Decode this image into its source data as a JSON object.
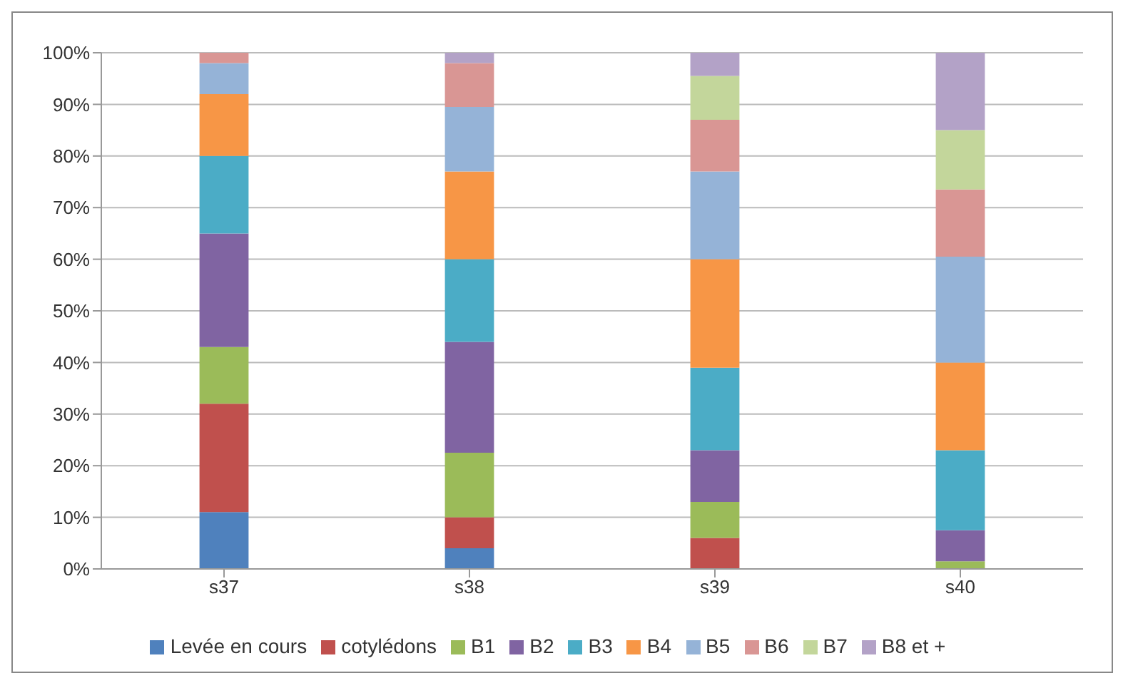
{
  "chart_data": {
    "type": "bar",
    "stacked": true,
    "categories": [
      "s37",
      "s38",
      "s39",
      "s40"
    ],
    "series": [
      {
        "name": "Levée en cours",
        "color": "#4f81bd",
        "values": [
          11,
          4,
          0,
          0
        ]
      },
      {
        "name": "cotylédons",
        "color": "#c0504d",
        "values": [
          21,
          6,
          6,
          0
        ]
      },
      {
        "name": "B1",
        "color": "#9bbb59",
        "values": [
          11,
          12.5,
          7,
          1.5
        ]
      },
      {
        "name": "B2",
        "color": "#8064a2",
        "values": [
          22,
          21.5,
          10,
          6
        ]
      },
      {
        "name": "B3",
        "color": "#4bacc6",
        "values": [
          15,
          16,
          16,
          15.5
        ]
      },
      {
        "name": "B4",
        "color": "#f79646",
        "values": [
          12,
          17,
          21,
          17
        ]
      },
      {
        "name": "B5",
        "color": "#95b3d7",
        "values": [
          6,
          12.5,
          17,
          20.5
        ]
      },
      {
        "name": "B6",
        "color": "#d99694",
        "values": [
          2,
          8.5,
          10,
          13
        ]
      },
      {
        "name": "B7",
        "color": "#c3d69b",
        "values": [
          0,
          0,
          8.5,
          11.5
        ]
      },
      {
        "name": "B8 et +",
        "color": "#b3a2c7",
        "values": [
          0,
          2,
          4.5,
          15
        ]
      }
    ],
    "ylim": [
      0,
      100
    ],
    "yticks": [
      {
        "value": 0,
        "label": "0%"
      },
      {
        "value": 10,
        "label": "10%"
      },
      {
        "value": 20,
        "label": "20%"
      },
      {
        "value": 30,
        "label": "30%"
      },
      {
        "value": 40,
        "label": "40%"
      },
      {
        "value": 50,
        "label": "50%"
      },
      {
        "value": 60,
        "label": "60%"
      },
      {
        "value": 70,
        "label": "70%"
      },
      {
        "value": 80,
        "label": "80%"
      },
      {
        "value": 90,
        "label": "90%"
      },
      {
        "value": 100,
        "label": "100%"
      }
    ],
    "grid": "y",
    "legend": "bottom"
  }
}
